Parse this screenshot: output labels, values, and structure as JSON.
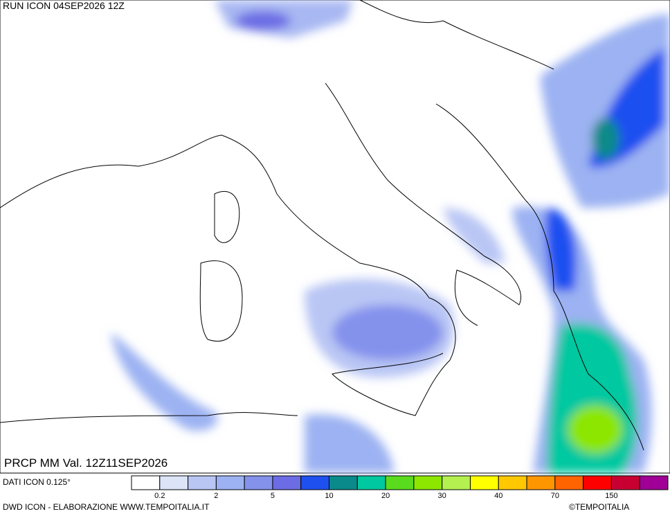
{
  "header": {
    "run": "RUN ICON 04SEP2026 12Z"
  },
  "map": {
    "caption": "PRCP MM Val. 12Z11SEP2026"
  },
  "legend": {
    "source": "DATI ICON 0.125°",
    "colors": [
      "#ffffff",
      "#dce4f8",
      "#b9c6f4",
      "#9cb2f2",
      "#8592ec",
      "#6c6ce4",
      "#1e50f0",
      "#0a8a8a",
      "#00c8a0",
      "#5adc1e",
      "#8ce600",
      "#b4f050",
      "#ffff00",
      "#ffc800",
      "#ff9600",
      "#ff6400",
      "#ff0000",
      "#c80032",
      "#a00096"
    ],
    "ticks": [
      "0.2",
      "2",
      "5",
      "10",
      "20",
      "30",
      "40",
      "70",
      "150"
    ]
  },
  "footer": {
    "left": "DWD ICON - ELABORAZIONE WWW.TEMPOITALIA.IT",
    "right": "©TEMPOITALIA"
  }
}
